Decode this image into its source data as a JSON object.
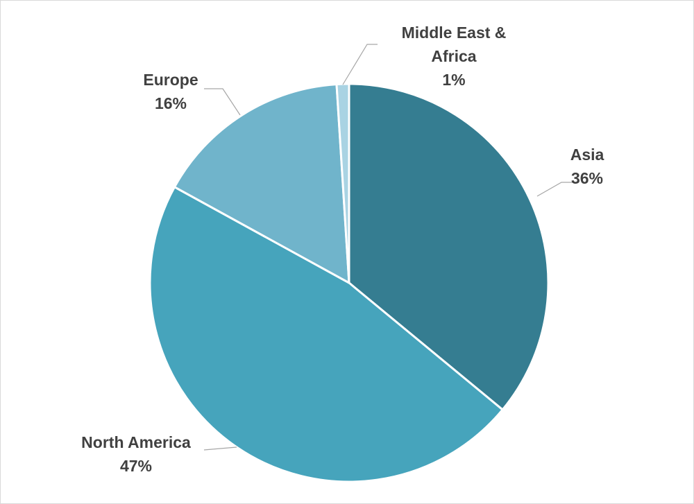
{
  "chart_data": {
    "type": "pie",
    "title": "",
    "start_angle_deg": 0,
    "direction": "clockwise",
    "slices": [
      {
        "label": "Asia",
        "value": 36,
        "pct_label": "36%",
        "color": "#357d91"
      },
      {
        "label": "North America",
        "value": 47,
        "pct_label": "47%",
        "color": "#46a4bc"
      },
      {
        "label": "Europe",
        "value": 16,
        "pct_label": "16%",
        "color": "#70b4cb"
      },
      {
        "label": "Middle East & Africa",
        "value": 1,
        "pct_label": "1%",
        "color": "#a9d3e3"
      }
    ],
    "label_color": "#404040",
    "leader_line_color": "#a6a6a6",
    "slice_border_color": "#ffffff"
  }
}
